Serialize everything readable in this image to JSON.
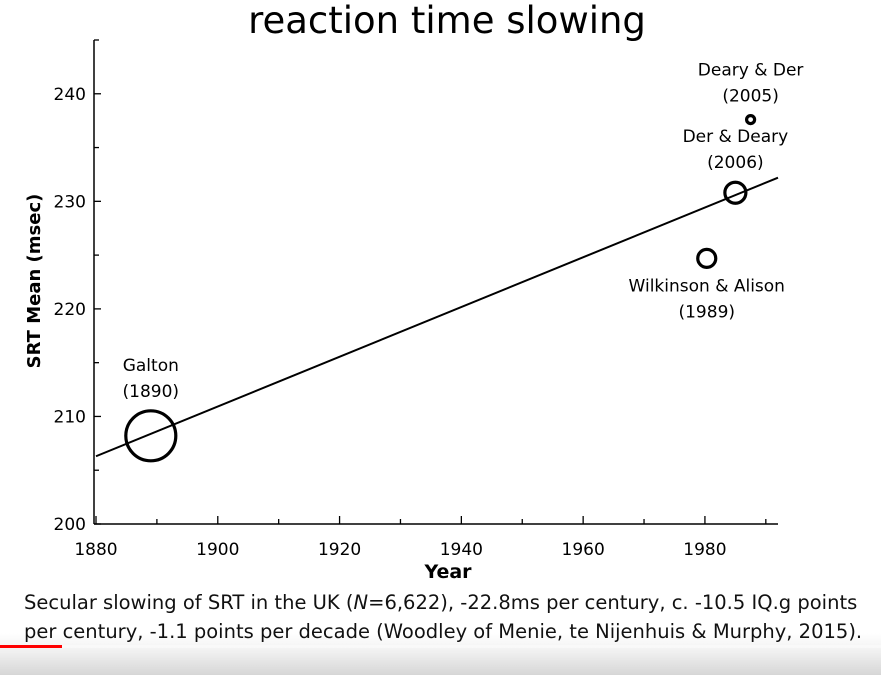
{
  "chart_data": {
    "type": "scatter",
    "title": "reaction time slowing",
    "xlabel": "Year",
    "ylabel": "SRT Mean (msec)",
    "xlim": [
      1880,
      1992
    ],
    "ylim": [
      200,
      245
    ],
    "xticks": [
      1880,
      1900,
      1920,
      1940,
      1960,
      1980
    ],
    "yticks": [
      200,
      210,
      220,
      230,
      240
    ],
    "grid": false,
    "points": [
      {
        "name": "galton",
        "x": 1889,
        "y": 208.2,
        "size": 25,
        "label_lines": [
          "Galton",
          "(1890)"
        ],
        "label_pos": "above"
      },
      {
        "name": "wilkinson-alison",
        "x": 1980.3,
        "y": 224.7,
        "size": 9,
        "label_lines": [
          "Wilkinson & Alison",
          "(1989)"
        ],
        "label_pos": "below"
      },
      {
        "name": "der-deary",
        "x": 1985,
        "y": 230.8,
        "size": 10.5,
        "label_lines": [
          "Der & Deary",
          "(2006)"
        ],
        "label_pos": "above"
      },
      {
        "name": "deary-der",
        "x": 1987.5,
        "y": 237.6,
        "size": 4,
        "label_lines": [
          "Deary & Der",
          "(2005)"
        ],
        "label_pos": "above"
      }
    ],
    "trend_line": {
      "x": [
        1880,
        1992
      ],
      "y": [
        206.3,
        232.2
      ]
    }
  },
  "caption": {
    "text_before": "Secular slowing of SRT in the UK (",
    "n_symbol": "N",
    "text_after": "=6,622), -22.8ms per century, c. -10.5 IQ.g points per century, -1.1 points per decade (Woodley of Menie, te Nijenhuis & Murphy, 2015)."
  },
  "video": {
    "progress": 0.07
  }
}
